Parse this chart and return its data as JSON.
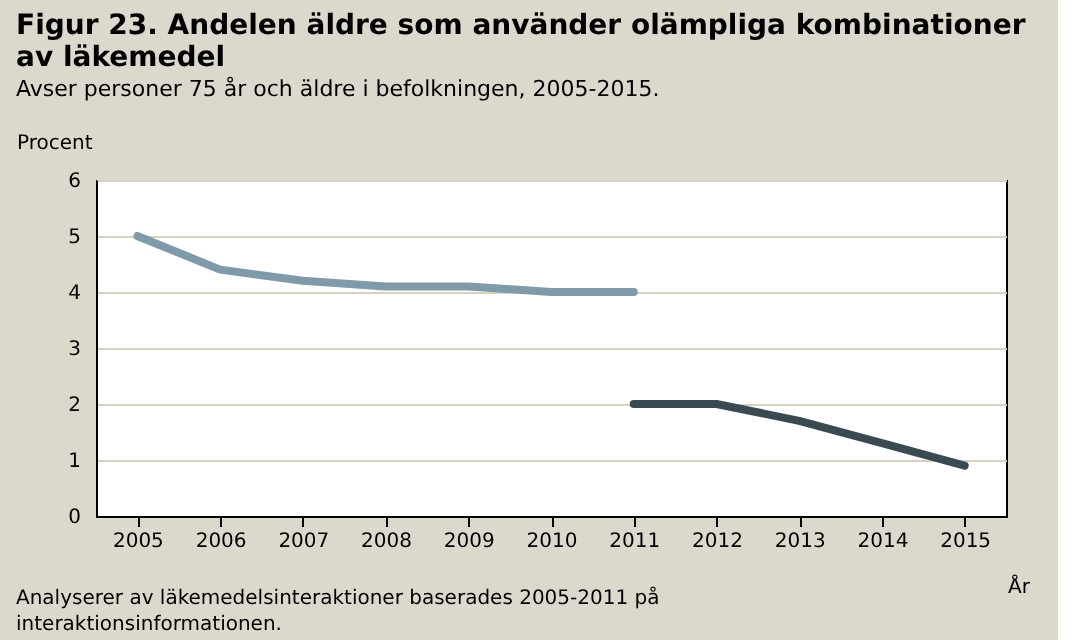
{
  "chart_data": {
    "type": "line",
    "title": "Figur 23. Andelen äldre som använder olämpliga kombinationer av läkemedel",
    "subtitle": "Avser personer  75 år och äldre i befolkningen, 2005-2015.",
    "ylabel": "Procent",
    "xlabel": "År",
    "categories": [
      "2005",
      "2006",
      "2007",
      "2008",
      "2009",
      "2010",
      "2011",
      "2012",
      "2013",
      "2014",
      "2015"
    ],
    "series": [
      {
        "color": "#7f9aa8",
        "values": [
          5.0,
          4.4,
          4.2,
          4.1,
          4.1,
          4.0,
          4.0,
          null,
          null,
          null,
          null
        ]
      },
      {
        "color": "#3a4a52",
        "values": [
          null,
          null,
          null,
          null,
          null,
          null,
          2.0,
          2.0,
          1.7,
          1.3,
          0.9
        ]
      }
    ],
    "ylim": [
      0,
      6
    ],
    "yticks": [
      0,
      1,
      2,
      3,
      4,
      5,
      6
    ],
    "grid": "y",
    "legend": false,
    "marker": "none",
    "line_style": "solid",
    "annotations": [
      "Analyserer av läkemedelsinteraktioner baserades 2005-2011 på interaktionsinformationen."
    ]
  }
}
